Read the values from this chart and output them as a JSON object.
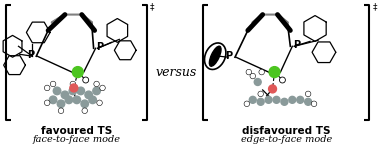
{
  "background_color": "#ffffff",
  "versus_text": "versus",
  "left_title_bold": "favoured TS",
  "left_title_italic": "face-to-face mode",
  "right_title_bold": "disfavoured TS",
  "right_title_italic": "edge-to-face mode",
  "bracket_color": "#000000",
  "text_color": "#000000",
  "green_color": "#4cc520",
  "red_color": "#e05858",
  "gray_color": "#8a9a9a",
  "white_atom_color": "#ffffff",
  "figwidth": 3.78,
  "figheight": 1.62,
  "dpi": 100
}
